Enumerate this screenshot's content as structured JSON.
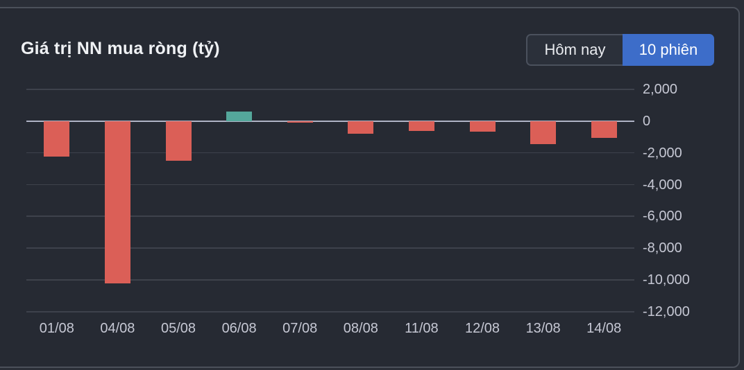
{
  "header": {
    "title": "Giá trị NN mua ròng (tỷ)",
    "toggle": {
      "today_label": "Hôm nay",
      "ten_sessions_label": "10 phiên",
      "active_option": "10 phiên"
    }
  },
  "colors": {
    "outer_background": "#2a2e37",
    "panel_background": "#262a33",
    "panel_border": "#4b505a",
    "grid_line": "#3e424c",
    "zero_line": "#b0b4c6",
    "positive": "#54a79b",
    "negative": "#db5f57",
    "axis_text": "#c6c8d4",
    "title_text": "#eff1f4",
    "active_button": "#3d6dc9",
    "inactive_button_bg": "#2b303a",
    "inactive_button_border": "#4b515d"
  },
  "chart_data": {
    "type": "bar",
    "title": "Giá trị NN mua ròng (tỷ)",
    "xlabel": "",
    "ylabel": "",
    "categories": [
      "01/08",
      "04/08",
      "05/08",
      "06/08",
      "07/08",
      "08/08",
      "11/08",
      "12/08",
      "13/08",
      "14/08"
    ],
    "values": [
      -2250,
      -10200,
      -2500,
      600,
      -100,
      -800,
      -600,
      -650,
      -1450,
      -1050
    ],
    "ylim": [
      -12000,
      2000
    ],
    "yticks": [
      2000,
      0,
      -2000,
      -4000,
      -6000,
      -8000,
      -10000,
      -12000
    ],
    "ytick_labels": [
      "2,000",
      "0",
      "-2,000",
      "-4,000",
      "-6,000",
      "-8,000",
      "-10,000",
      "-12,000"
    ],
    "grid": true,
    "legend": false,
    "axis_side": "right"
  }
}
